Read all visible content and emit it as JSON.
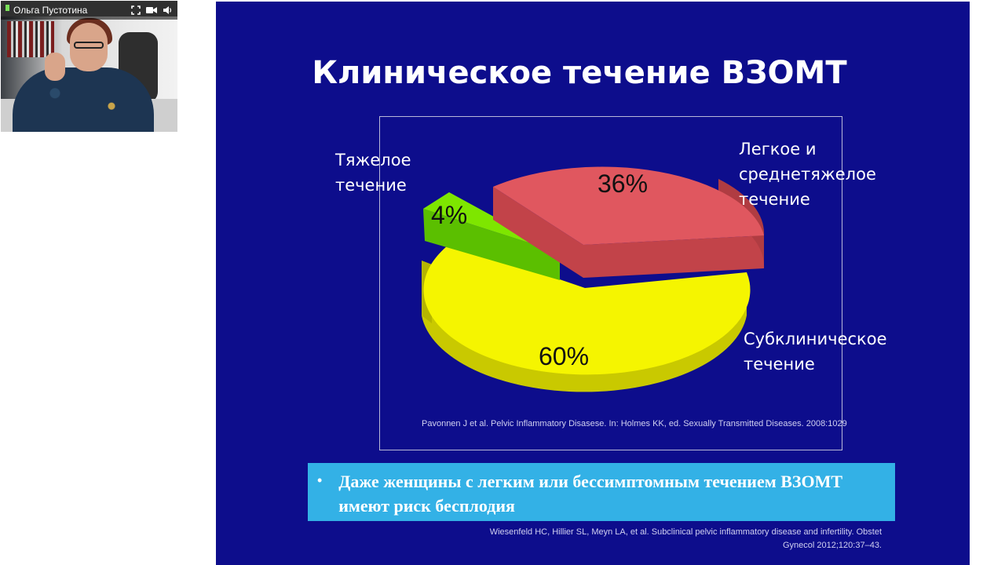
{
  "video": {
    "presenter_name": "Ольга Пустотина",
    "icons": [
      "fullscreen-icon",
      "camera-icon",
      "speaker-icon"
    ],
    "mic_color": "#7be15a"
  },
  "slide": {
    "title": "Клиническое течение ВЗОМТ",
    "background": "#0d0d8c",
    "labels": {
      "severe": "Тяжелое течение",
      "mild": "Легкое и среднетяжелое течение",
      "subclinical": "Субклиническое течение"
    },
    "source_1": "Pavonnen J et al. Pelvic Inflammatory Disasese. In: Holmes KK, ed. Sexually Transmitted Diseases. 2008:1029",
    "callout_text": "Даже женщины с легким или бессимптомным течением ВЗОМТ имеют риск бесплодия",
    "source_2": "Wiesenfeld HC, Hillier SL, Meyn LA, et al. Subclinical pelvic inflammatory disease and infertility. Obstet Gynecol 2012;120:37–43."
  },
  "chart_data": {
    "type": "pie",
    "title": "",
    "slices": [
      {
        "name": "Тяжелое течение",
        "value": 4,
        "label": "4%",
        "color": "#7ee600"
      },
      {
        "name": "Легкое и среднетяжелое течение",
        "value": 36,
        "label": "36%",
        "color": "#e0575f"
      },
      {
        "name": "Субклиническое течение",
        "value": 60,
        "label": "60%",
        "color": "#f5f500"
      }
    ],
    "style": "3d-exploded"
  }
}
